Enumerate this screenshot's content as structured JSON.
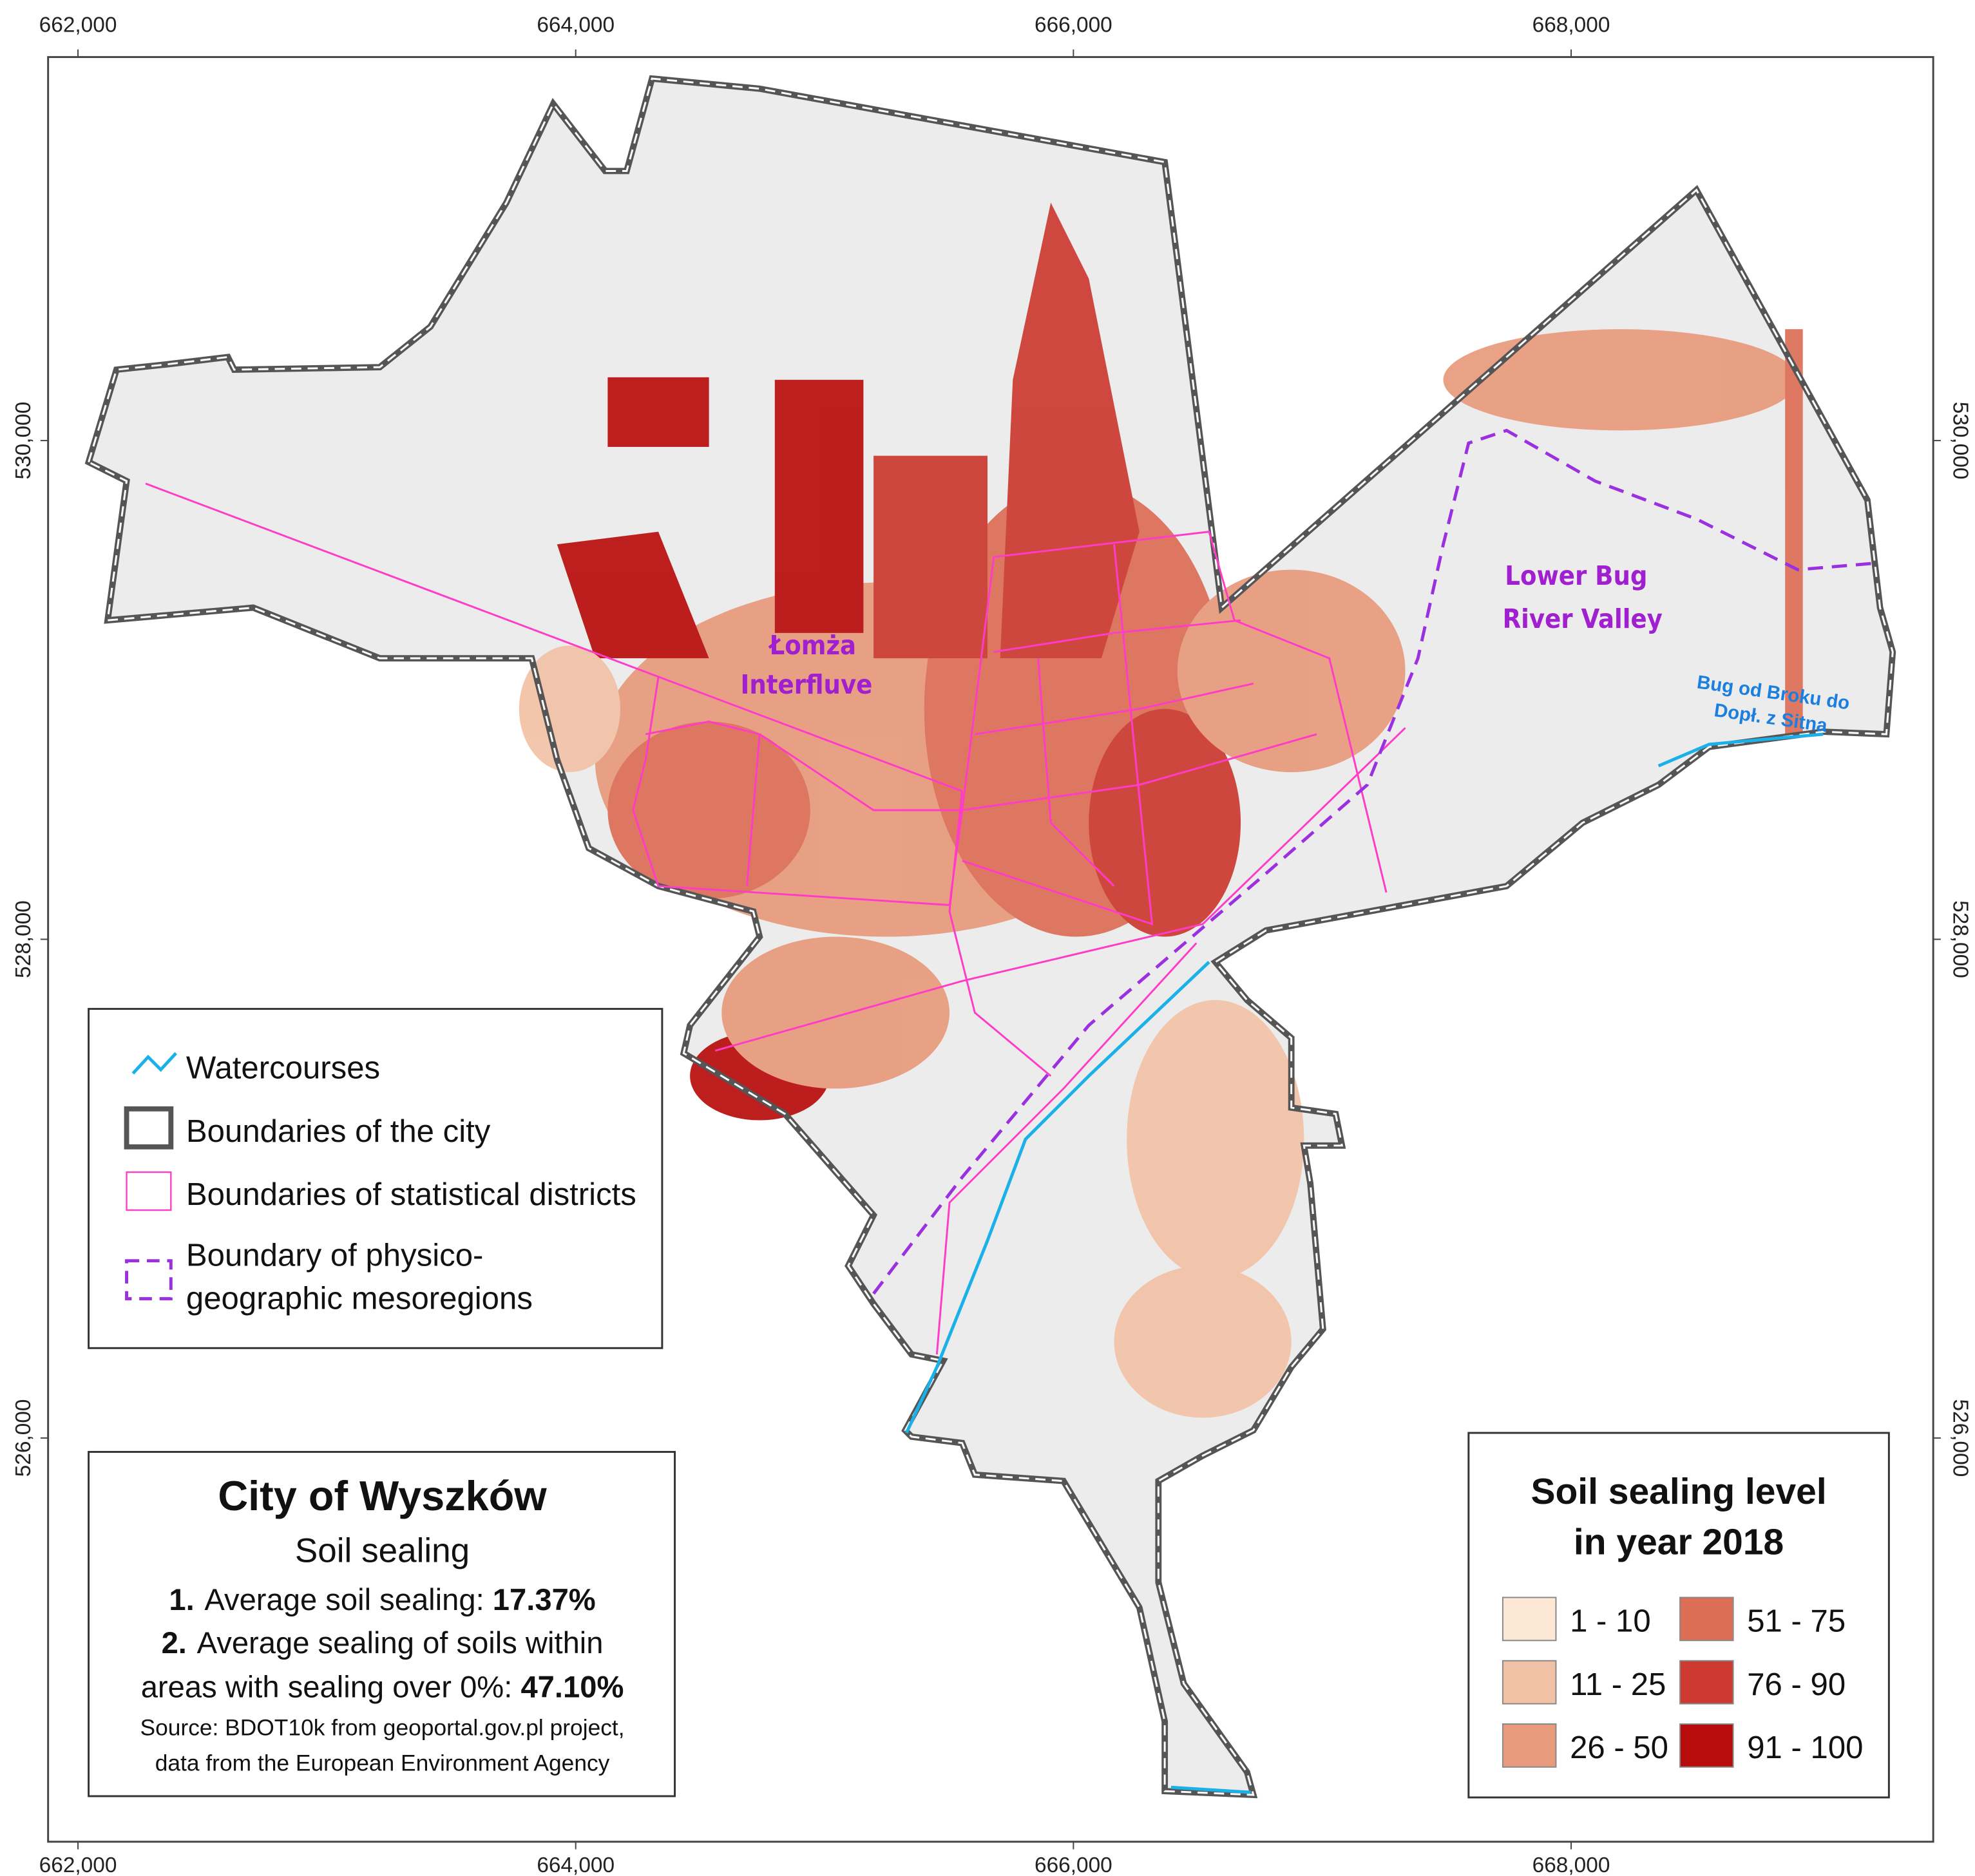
{
  "map": {
    "x_axis": {
      "xlim": [
        661880,
        669455
      ],
      "ticks": [
        {
          "value": 662000,
          "label": "662,000"
        },
        {
          "value": 664000,
          "label": "664,000"
        },
        {
          "value": 666000,
          "label": "666,000"
        },
        {
          "value": 668000,
          "label": "668,000"
        }
      ]
    },
    "y_axis": {
      "ylim": [
        524381,
        531538
      ],
      "ticks": [
        {
          "value": 530000,
          "label": "530,000"
        },
        {
          "value": 528000,
          "label": "528,000"
        },
        {
          "value": 526000,
          "label": "526,000"
        }
      ]
    },
    "region_labels": [
      {
        "lines": [
          "Łomża",
          "Interfluve"
        ]
      },
      {
        "lines": [
          "Lower Bug",
          "River Valley"
        ]
      }
    ],
    "watercourse_label": {
      "lines": [
        "Bug od Broku do",
        "Dopł. z Sitna"
      ]
    },
    "features_legend": {
      "items": [
        {
          "label": "Watercourses",
          "color": "#1ab0e8"
        },
        {
          "label": "Boundaries of the city",
          "color": "#555555"
        },
        {
          "label": "Boundaries of statistical districts",
          "color": "#ff3cc8"
        },
        {
          "lines": [
            "Boundary of physico-",
            "geographic mesoregions"
          ],
          "color": "#9b30e0"
        }
      ]
    },
    "info_box": {
      "title": "City of Wyszków",
      "subtitle": "Soil sealing",
      "items": [
        {
          "number": "1.",
          "lines": [
            "Average soil sealing: "
          ],
          "value": "17.37%"
        },
        {
          "number": "2.",
          "lines": [
            "Average sealing of soils within",
            "areas with sealing over 0%: "
          ],
          "value": "47.10%"
        }
      ],
      "source": [
        "Source: BDOT10k from geoportal.gov.pl project,",
        "data from the European Environment Agency"
      ]
    },
    "sealing_legend": {
      "title": [
        "Soil sealing level",
        "in year 2018"
      ],
      "classes": [
        {
          "label": "1 - 10",
          "color": "#fde8d6"
        },
        {
          "label": "11 - 25",
          "color": "#f2c2a6"
        },
        {
          "label": "26 - 50",
          "color": "#e89a7c"
        },
        {
          "label": "51 - 75",
          "color": "#dc6e56"
        },
        {
          "label": "76 - 90",
          "color": "#cc3a30"
        },
        {
          "label": "91 - 100",
          "color": "#b80c0c"
        }
      ]
    }
  }
}
